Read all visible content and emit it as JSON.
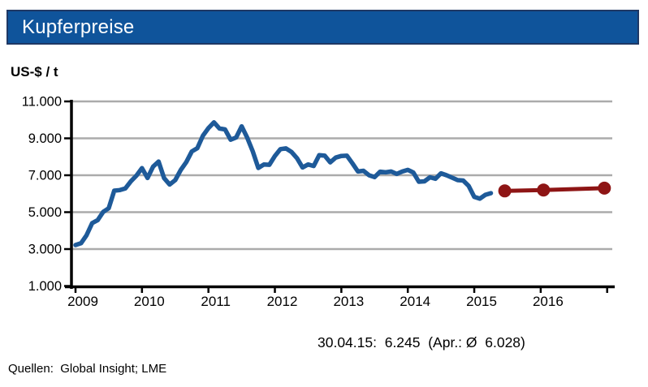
{
  "header": {
    "title": "Kupferpreise",
    "background_color": "#0F549B",
    "border_color": "#1F3864",
    "text_color": "#FFFFFF"
  },
  "footer": {
    "source": "Quellen:  Global Insight; LME"
  },
  "chart_data": {
    "type": "line",
    "title": "Kupferpreise",
    "ylabel": "US-$ / t",
    "ylim": [
      1000,
      11000
    ],
    "y_tick_interval": 2000,
    "y_tick_labels": [
      "1.000",
      "3.000",
      "5.000",
      "7.000",
      "9.000",
      "11.000"
    ],
    "x_tick_labels": [
      "2009",
      "2010",
      "2011",
      "2012",
      "2013",
      "2014",
      "2015",
      "2016"
    ],
    "grid": "horizontal-only",
    "legend": "none",
    "annotation": "30.04.15:  6.245  (Apr.: Ø  6.028)",
    "colors": {
      "history_line": "#1E5A99",
      "forecast_line": "#8E1515",
      "gridline": "#ABABAB",
      "axis": "#000000"
    },
    "series": [
      {
        "name": "history",
        "color": "#1E5A99",
        "start_month": "2009-01",
        "end_month": "2015-04",
        "monthly_values": [
          3220,
          3315,
          3750,
          4405,
          4570,
          5015,
          5215,
          6165,
          6195,
          6290,
          6675,
          6980,
          7385,
          6850,
          7465,
          7745,
          6840,
          6500,
          6735,
          7285,
          7710,
          8290,
          8470,
          9145,
          9555,
          9865,
          9530,
          9485,
          8925,
          9045,
          9650,
          9040,
          8300,
          7395,
          7580,
          7565,
          8040,
          8415,
          8455,
          8260,
          7920,
          7420,
          7585,
          7500,
          8085,
          8060,
          7700,
          7960,
          8045,
          8060,
          7645,
          7200,
          7240,
          7000,
          6900,
          7195,
          7160,
          7200,
          7070,
          7200,
          7290,
          7150,
          6650,
          6670,
          6890,
          6810,
          7105,
          7000,
          6870,
          6735,
          6715,
          6420,
          5830,
          5730,
          5940,
          6030
        ]
      },
      {
        "name": "forecast",
        "color": "#8E1515",
        "marker": "circle",
        "points": [
          {
            "month": "2015-06",
            "value": 6150
          },
          {
            "month": "2016-01",
            "value": 6200
          },
          {
            "month": "2016-12",
            "value": 6300
          }
        ]
      }
    ]
  }
}
